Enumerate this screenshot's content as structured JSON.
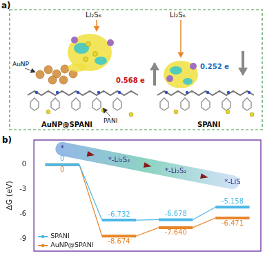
{
  "panel_a": {
    "label": "a)",
    "structures": [
      {
        "name": "AuNP@SPANI",
        "adsorbate": "Li₂S₆",
        "charge_transfer": "0.568 e",
        "parts": [
          "AuNP",
          "PANI"
        ]
      },
      {
        "name": "SPANI",
        "adsorbate": "Li₂S₆",
        "charge_transfer": "0.252 e"
      }
    ]
  },
  "panel_b": {
    "label": "b)"
  },
  "chart_data": {
    "type": "line",
    "y_label": "ΔG (eV)",
    "categories": [
      "*",
      "*-Li₂S₄",
      "*-Li₂S₂",
      "*-LiS"
    ],
    "series": [
      {
        "name": "SPANI",
        "color": "#4cb8e6",
        "values": [
          0,
          -6.732,
          -6.678,
          -5.158
        ]
      },
      {
        "name": "AuNP@SPANI",
        "color": "#e8862a",
        "values": [
          0,
          -8.674,
          -7.64,
          -6.471
        ],
        "value_labels": [
          "0",
          "-8.674",
          "-7.640",
          "-6.471"
        ]
      }
    ],
    "ylim": [
      -10.5,
      3
    ],
    "yticks": [
      -9,
      -6,
      -3,
      0
    ],
    "grid": false,
    "legend": "lower left",
    "data_labels": true,
    "tick_labels": "y"
  }
}
